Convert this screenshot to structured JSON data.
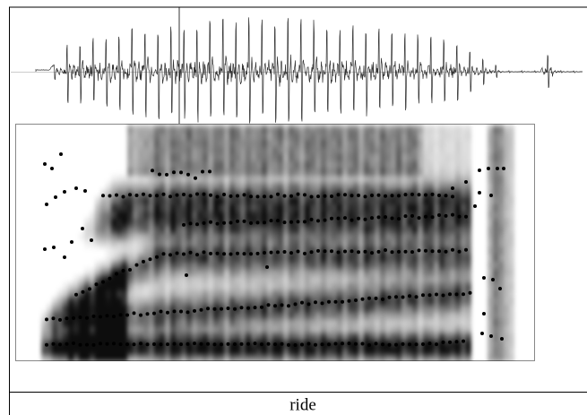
{
  "tier": {
    "label": "ride"
  }
}
